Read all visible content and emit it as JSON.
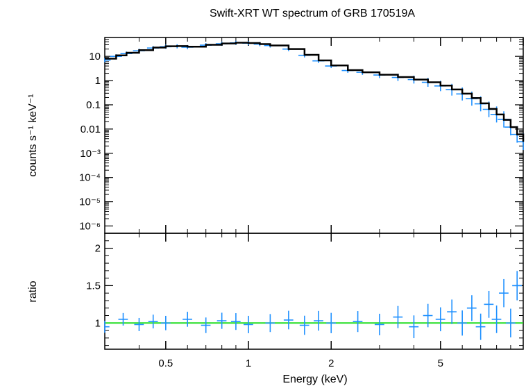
{
  "chart_data": [
    {
      "type": "line",
      "panel": "spectrum",
      "title": "Swift-XRT WT spectrum of GRB 170519A",
      "ylabel": "counts s⁻¹ keV⁻¹",
      "x_scale": "log",
      "y_scale": "log",
      "xlim": [
        0.3,
        10
      ],
      "ylim": [
        5e-07,
        60
      ],
      "y_ticks": [
        {
          "value": 10,
          "label": "10"
        },
        {
          "value": 1,
          "label": "1"
        },
        {
          "value": 0.1,
          "label": "0.1"
        },
        {
          "value": 0.01,
          "label": "0.01"
        },
        {
          "value": 0.001,
          "label": "10⁻³"
        },
        {
          "value": 0.0001,
          "label": "10⁻⁴"
        },
        {
          "value": 1e-05,
          "label": "10⁻⁵"
        },
        {
          "value": 1e-06,
          "label": "10⁻⁶"
        }
      ],
      "series": [
        {
          "color": "#1e90ff",
          "style": "crosses (data with error bars)",
          "x": [
            0.3,
            0.33,
            0.36,
            0.4,
            0.45,
            0.5,
            0.55,
            0.6,
            0.7,
            0.8,
            0.9,
            1.0,
            1.1,
            1.2,
            1.4,
            1.6,
            1.8,
            2.0,
            2.3,
            2.6,
            3.0,
            3.5,
            4.0,
            4.5,
            5.0,
            5.5,
            6.0,
            6.5,
            7.0,
            7.5,
            8.0,
            8.5,
            9.0,
            9.5,
            10.0
          ],
          "y": [
            7.0,
            10.0,
            13.0,
            17.0,
            22.0,
            25.0,
            26.0,
            24.0,
            29.0,
            33.0,
            36.0,
            35.0,
            32.0,
            28.0,
            20.0,
            11.0,
            6.5,
            4.0,
            2.6,
            2.2,
            1.7,
            1.35,
            1.1,
            0.85,
            0.6,
            0.42,
            0.28,
            0.18,
            0.11,
            0.065,
            0.04,
            0.025,
            0.012,
            0.006,
            0.003
          ]
        },
        {
          "color": "#000000",
          "style": "stepped model",
          "x": [
            0.3,
            0.33,
            0.36,
            0.4,
            0.45,
            0.5,
            0.55,
            0.6,
            0.7,
            0.8,
            0.9,
            1.0,
            1.1,
            1.2,
            1.4,
            1.6,
            1.8,
            2.0,
            2.3,
            2.6,
            3.0,
            3.5,
            4.0,
            4.5,
            5.0,
            5.5,
            6.0,
            6.5,
            7.0,
            7.5,
            8.0,
            8.5,
            9.0,
            9.5,
            10.0
          ],
          "y": [
            8.0,
            11.0,
            14.0,
            18.0,
            23.0,
            26.0,
            26.5,
            25.0,
            30.0,
            34.0,
            36.5,
            35.5,
            32.0,
            28.0,
            20.0,
            11.5,
            6.8,
            4.2,
            2.7,
            2.2,
            1.75,
            1.4,
            1.1,
            0.85,
            0.62,
            0.43,
            0.29,
            0.19,
            0.115,
            0.068,
            0.04,
            0.024,
            0.012,
            0.006,
            0.003
          ]
        }
      ]
    },
    {
      "type": "scatter",
      "panel": "ratio",
      "xlabel": "Energy (keV)",
      "ylabel": "ratio",
      "x_scale": "log",
      "xlim": [
        0.3,
        10
      ],
      "ylim": [
        0.65,
        2.2
      ],
      "x_ticks": [
        {
          "value": 0.5,
          "label": "0.5"
        },
        {
          "value": 1,
          "label": "1"
        },
        {
          "value": 2,
          "label": "2"
        },
        {
          "value": 5,
          "label": "5"
        }
      ],
      "y_ticks": [
        {
          "value": 1,
          "label": "1"
        },
        {
          "value": 1.5,
          "label": "1.5"
        },
        {
          "value": 2,
          "label": "2"
        }
      ],
      "reference_line": {
        "y": 1,
        "color": "#22dd22"
      },
      "series": [
        {
          "color": "#1e90ff",
          "style": "crosses (data/model ratio)",
          "x": [
            0.3,
            0.35,
            0.4,
            0.45,
            0.5,
            0.6,
            0.7,
            0.8,
            0.9,
            1.0,
            1.2,
            1.4,
            1.6,
            1.8,
            2.0,
            2.5,
            3.0,
            3.5,
            4.0,
            4.5,
            5.0,
            5.5,
            6.0,
            6.5,
            7.0,
            7.5,
            8.0,
            8.5,
            9.0,
            9.5
          ],
          "y": [
            0.95,
            1.05,
            0.98,
            1.02,
            1.0,
            1.05,
            0.97,
            1.03,
            1.02,
            0.98,
            1.0,
            1.04,
            0.97,
            1.03,
            1.0,
            1.02,
            0.98,
            1.08,
            0.95,
            1.1,
            1.05,
            1.15,
            1.0,
            1.2,
            0.95,
            1.25,
            1.05,
            1.4,
            1.0,
            1.5
          ]
        }
      ]
    }
  ]
}
